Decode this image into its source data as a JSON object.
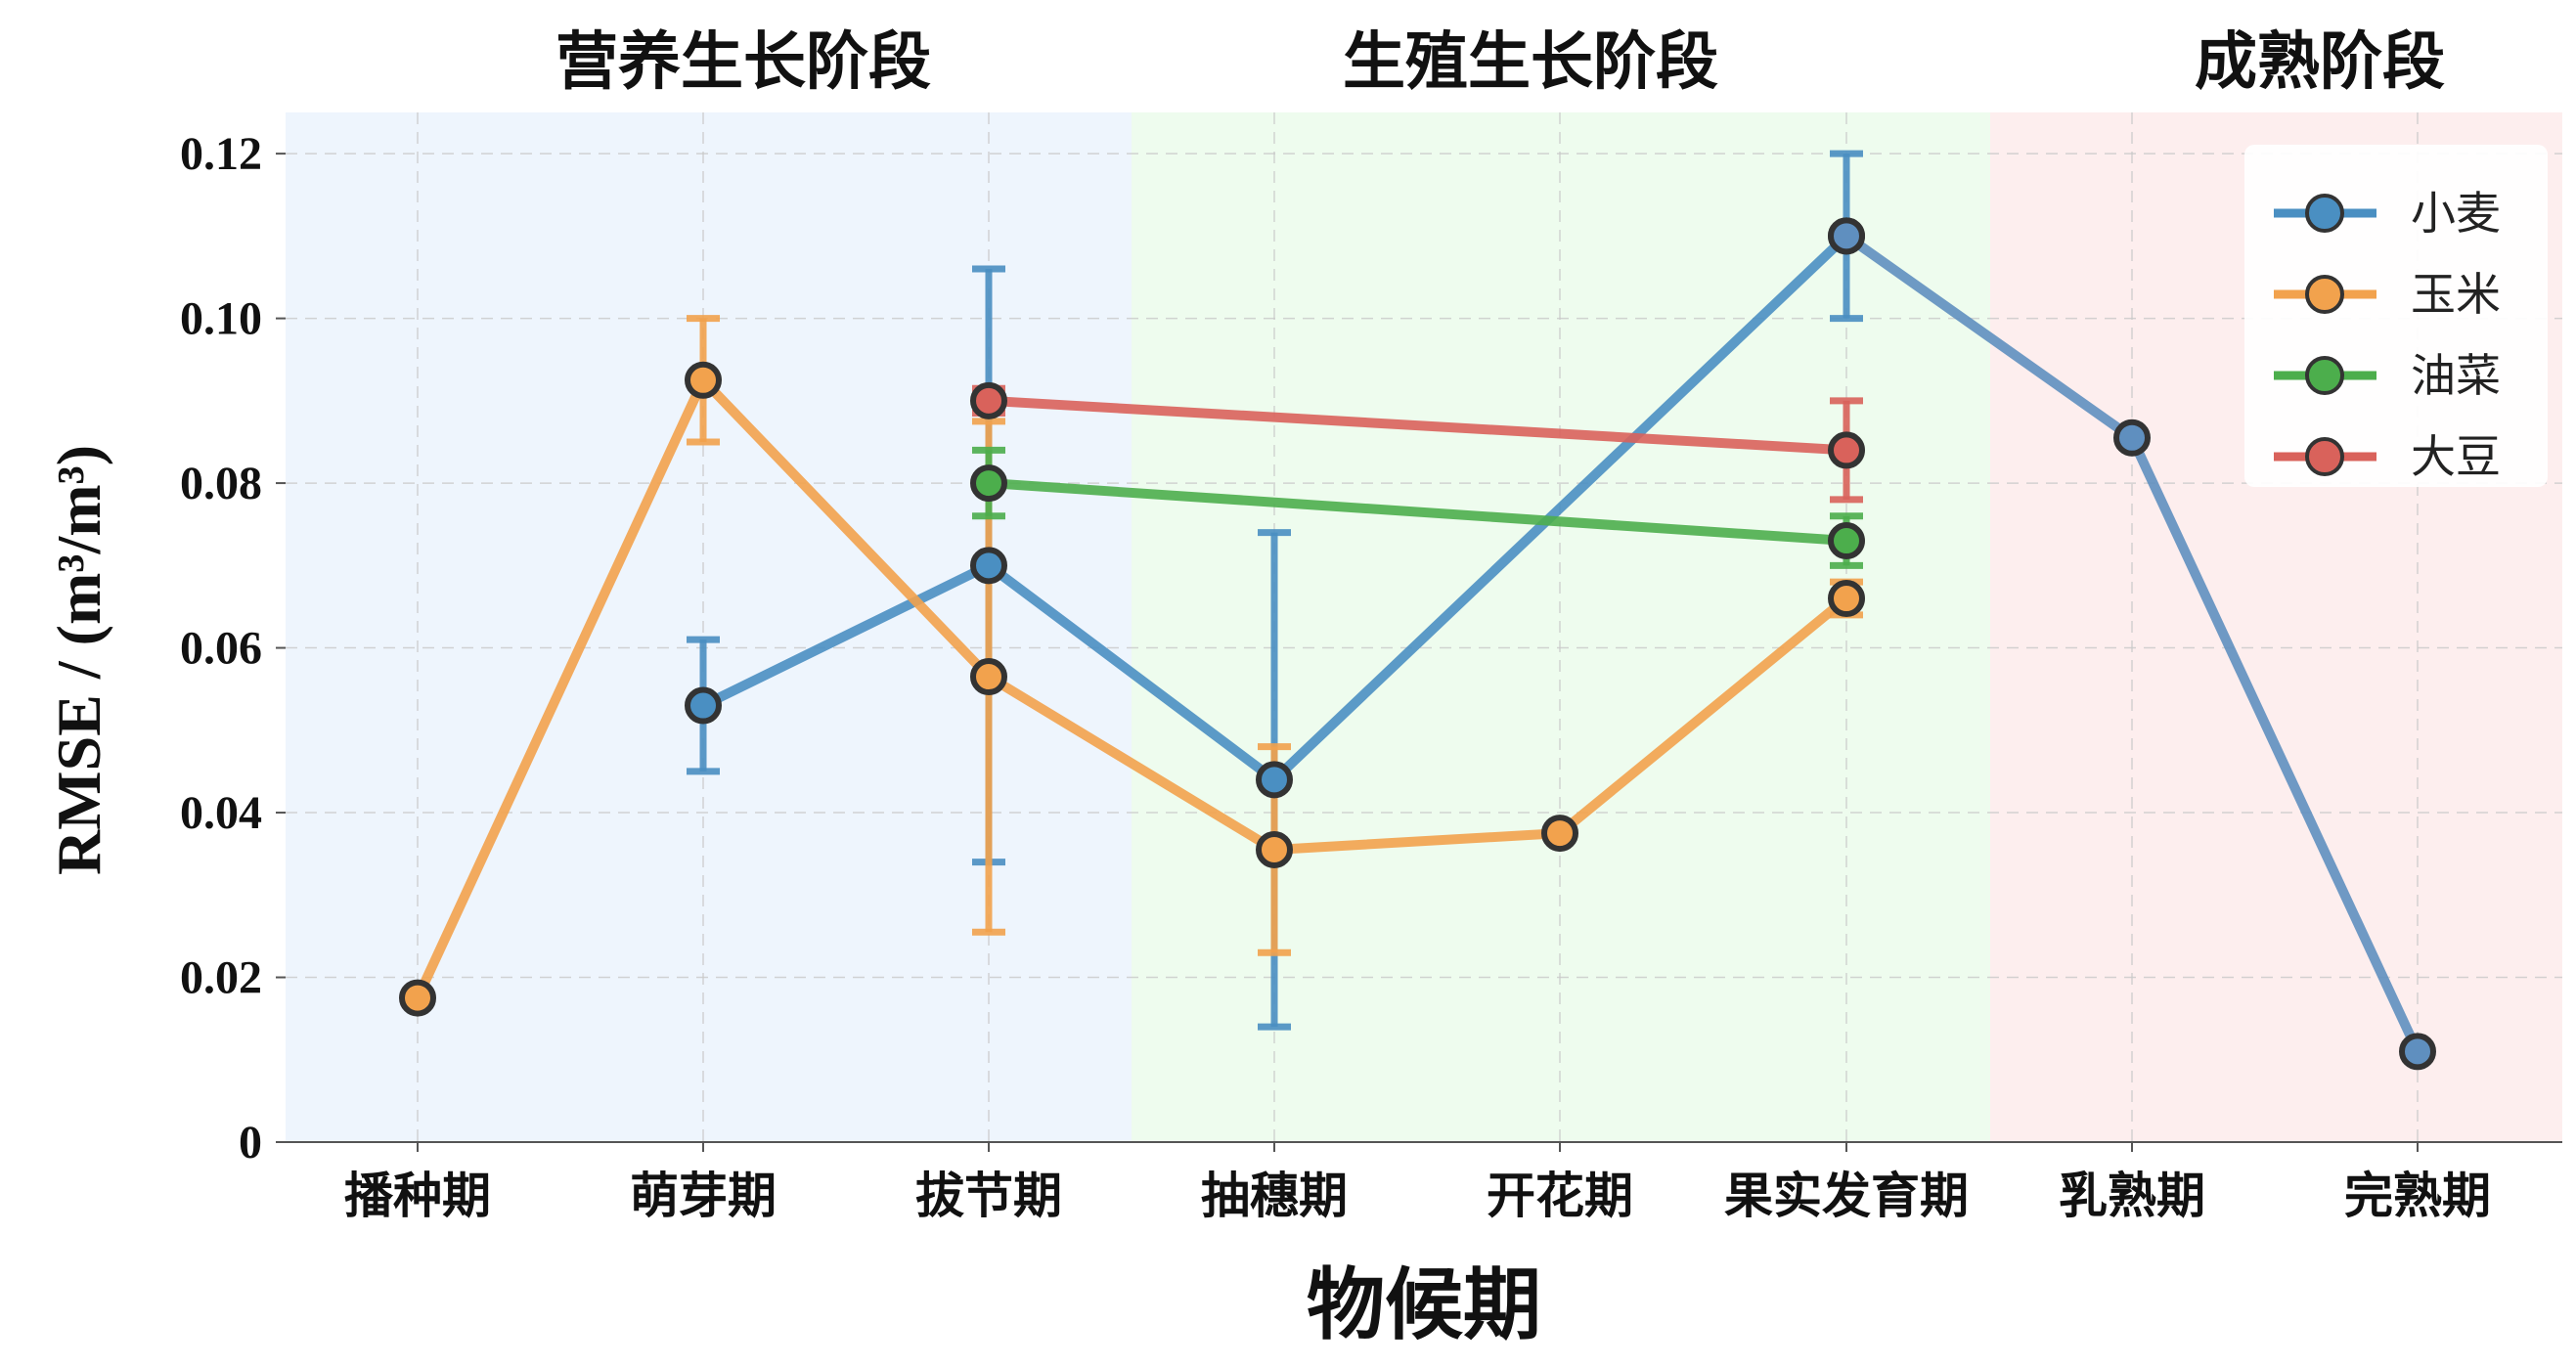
{
  "chart_data": {
    "type": "line",
    "title": "",
    "xlabel": "物候期",
    "ylabel": "RMSE / (m³/m³)",
    "categories": [
      "播种期",
      "萌芽期",
      "拔节期",
      "抽穗期",
      "开花期",
      "果实发育期",
      "乳熟期",
      "完熟期"
    ],
    "ylim": [
      0,
      0.125
    ],
    "yticks": [
      0,
      0.02,
      0.04,
      0.06,
      0.08,
      0.1,
      0.12
    ],
    "ytick_labels": [
      "0",
      "0.02",
      "0.04",
      "0.06",
      "0.08",
      "0.10",
      "0.12"
    ],
    "grid": true,
    "legend_position": "top-right",
    "stages": [
      {
        "label": "营养生长阶段",
        "from": 0,
        "to": 2,
        "color": "#eef5fd"
      },
      {
        "label": "生殖生长阶段",
        "from": 3,
        "to": 5,
        "color": "#eefcee"
      },
      {
        "label": "成熟阶段",
        "from": 6,
        "to": 7,
        "color": "#fdeeee"
      }
    ],
    "series": [
      {
        "name": "小麦",
        "color": "#4a8fc2",
        "marker_color": "#4a8fc2",
        "values": [
          null,
          0.053,
          0.07,
          0.044,
          null,
          0.11,
          null,
          null
        ],
        "errors": [
          null,
          0.008,
          0.036,
          0.03,
          null,
          0.01,
          null,
          null
        ]
      },
      {
        "name": "小麦",
        "color": "#5f8fbf",
        "marker_color": "#5f8fbf",
        "legend": false,
        "values": [
          null,
          null,
          null,
          null,
          null,
          0.11,
          0.0855,
          0.011
        ],
        "errors": [
          null,
          null,
          null,
          null,
          null,
          null,
          null,
          null
        ]
      },
      {
        "name": "玉米",
        "color": "#f2a24d",
        "marker_color": "#f2a24d",
        "values": [
          0.0175,
          0.0925,
          0.0565,
          0.0355,
          0.0375,
          0.066,
          null,
          null
        ],
        "errors": [
          null,
          0.0075,
          0.031,
          0.0125,
          null,
          0.002,
          null,
          null
        ]
      },
      {
        "name": "油菜",
        "color": "#4cae4c",
        "marker_color": "#4cae4c",
        "values": [
          null,
          null,
          0.08,
          null,
          null,
          0.073,
          null,
          null
        ],
        "errors": [
          null,
          null,
          0.004,
          null,
          null,
          0.003,
          null,
          null
        ]
      },
      {
        "name": "大豆",
        "color": "#d9625b",
        "marker_color": "#d9625b",
        "values": [
          null,
          null,
          0.09,
          null,
          null,
          0.084,
          null,
          null
        ],
        "errors": [
          null,
          null,
          0.0015,
          null,
          null,
          0.006,
          null,
          null
        ]
      }
    ]
  }
}
